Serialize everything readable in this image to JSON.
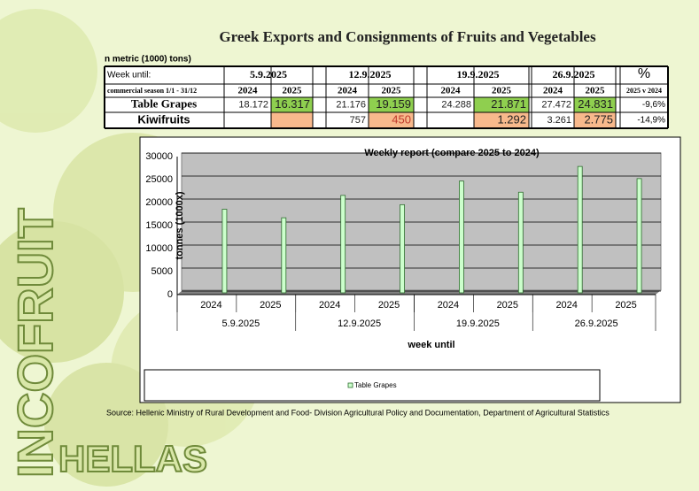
{
  "title": "Greek Exports and Consignments of Fruits and Vegetables",
  "unit_note": "n metric (1000) tons)",
  "logo": {
    "line1": "INCOFRUIT",
    "line2": "HELLAS"
  },
  "table": {
    "week_label": "Week until:",
    "weeks": [
      "5.9.2025",
      "12.9.2025",
      "19.9.2025",
      "26.9.2025"
    ],
    "pct_header": "%",
    "season_label": "commercial season 1/1 - 31/12",
    "years": [
      "2024",
      "2025",
      "2024",
      "2025",
      "2024",
      "2025",
      "2024",
      "2025"
    ],
    "pct_sub": "2025 v 2024",
    "rows": [
      {
        "name": "Table Grapes",
        "color": "#8fcf4f",
        "cells": [
          "18.172",
          "16.317",
          "21.176",
          "19.159",
          "24.288",
          "21.871",
          "27.472",
          "24.831"
        ],
        "pct": "-9,6%"
      },
      {
        "name": "Kiwifruits",
        "color": "#f8b98c",
        "cells": [
          null,
          null,
          "757",
          "450",
          null,
          "1.292",
          "3.261",
          "2.775"
        ],
        "pct": "-14,9%"
      }
    ]
  },
  "chart_data": {
    "type": "bar",
    "title": "Weekly report (compare 2025 to 2024)",
    "y_label": "tonnes (1000x)",
    "x_label": "week until",
    "categories": [
      "2024",
      "2025",
      "2024",
      "2025",
      "2024",
      "2025",
      "2024",
      "2025"
    ],
    "groups": [
      "5.9.2025",
      "12.9.2025",
      "19.9.2025",
      "26.9.2025"
    ],
    "series": [
      {
        "name": "Table Grapes",
        "color": "#ccffcc",
        "values": [
          18172,
          16317,
          21176,
          19159,
          24288,
          21871,
          27472,
          24831
        ]
      }
    ],
    "ylim": [
      0,
      30000
    ],
    "yticks": [
      0,
      5000,
      10000,
      15000,
      20000,
      25000,
      30000
    ],
    "grid": true
  },
  "source": "Source: Hellenic Ministry of Rural Development and Food- Division Agricultural Policy and Documentation, Department of Agricultural Statistics"
}
